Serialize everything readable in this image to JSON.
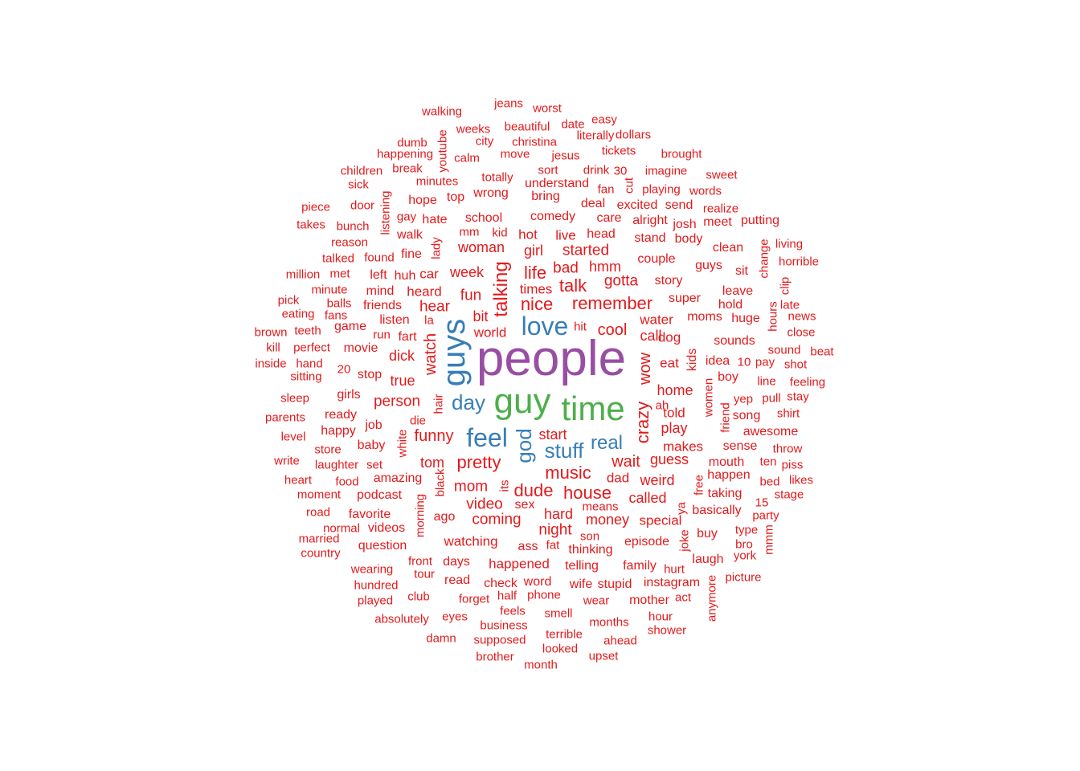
{
  "colors": {
    "small": "#e31a1c",
    "medium": "#377eb8",
    "large_green": "#4daf4a",
    "large_purple": "#984ea3"
  },
  "words": [
    {
      "text": "people",
      "color": "#984ea3"
    },
    {
      "text": "guy",
      "color": "#4daf4a"
    },
    {
      "text": "time",
      "color": "#4daf4a"
    },
    {
      "text": "guys",
      "color": "#377eb8"
    },
    {
      "text": "love",
      "color": "#377eb8"
    },
    {
      "text": "feel",
      "color": "#377eb8"
    },
    {
      "text": "day",
      "color": "#377eb8"
    },
    {
      "text": "stuff",
      "color": "#377eb8"
    },
    {
      "text": "real",
      "color": "#377eb8"
    },
    {
      "text": "god",
      "color": "#377eb8"
    },
    {
      "text": "remember",
      "color": "#e31a1c"
    },
    {
      "text": "talking",
      "color": "#e31a1c"
    },
    {
      "text": "nice",
      "color": "#e31a1c"
    },
    {
      "text": "music",
      "color": "#e31a1c"
    },
    {
      "text": "house",
      "color": "#e31a1c"
    },
    {
      "text": "pretty",
      "color": "#e31a1c"
    },
    {
      "text": "funny",
      "color": "#e31a1c"
    },
    {
      "text": "crazy",
      "color": "#e31a1c"
    },
    {
      "text": "talk",
      "color": "#e31a1c"
    },
    {
      "text": "life",
      "color": "#e31a1c"
    },
    {
      "text": "dude",
      "color": "#e31a1c"
    },
    {
      "text": "wait",
      "color": "#e31a1c"
    },
    {
      "text": "cool",
      "color": "#e31a1c"
    },
    {
      "text": "gotta",
      "color": "#e31a1c"
    },
    {
      "text": "watch",
      "color": "#e31a1c"
    },
    {
      "text": "wow",
      "color": "#e31a1c"
    },
    {
      "text": "person",
      "color": "#e31a1c"
    },
    {
      "text": "hear",
      "color": "#e31a1c"
    },
    {
      "text": "fun",
      "color": "#e31a1c"
    },
    {
      "text": "mom",
      "color": "#e31a1c"
    },
    {
      "text": "video",
      "color": "#e31a1c"
    },
    {
      "text": "coming",
      "color": "#e31a1c"
    },
    {
      "text": "money",
      "color": "#e31a1c"
    },
    {
      "text": "night",
      "color": "#e31a1c"
    },
    {
      "text": "started",
      "color": "#e31a1c"
    },
    {
      "text": "bad",
      "color": "#e31a1c"
    },
    {
      "text": "hmm",
      "color": "#e31a1c"
    },
    {
      "text": "week",
      "color": "#e31a1c"
    },
    {
      "text": "woman",
      "color": "#e31a1c"
    },
    {
      "text": "girl",
      "color": "#e31a1c"
    },
    {
      "text": "start",
      "color": "#e31a1c"
    },
    {
      "text": "guess",
      "color": "#e31a1c"
    },
    {
      "text": "home",
      "color": "#e31a1c"
    },
    {
      "text": "weird",
      "color": "#e31a1c"
    },
    {
      "text": "called",
      "color": "#e31a1c"
    },
    {
      "text": "hard",
      "color": "#e31a1c"
    },
    {
      "text": "tom",
      "color": "#e31a1c"
    },
    {
      "text": "play",
      "color": "#e31a1c"
    },
    {
      "text": "call",
      "color": "#e31a1c"
    },
    {
      "text": "dog",
      "color": "#e31a1c"
    },
    {
      "text": "water",
      "color": "#e31a1c"
    },
    {
      "text": "eat",
      "color": "#e31a1c"
    },
    {
      "text": "told",
      "color": "#e31a1c"
    },
    {
      "text": "makes",
      "color": "#e31a1c"
    },
    {
      "text": "dad",
      "color": "#e31a1c"
    },
    {
      "text": "special",
      "color": "#e31a1c"
    },
    {
      "text": "watching",
      "color": "#e31a1c"
    },
    {
      "text": "happened",
      "color": "#e31a1c"
    },
    {
      "text": "true",
      "color": "#e31a1c"
    },
    {
      "text": "dick",
      "color": "#e31a1c"
    },
    {
      "text": "world",
      "color": "#e31a1c"
    },
    {
      "text": "bit",
      "color": "#e31a1c"
    },
    {
      "text": "times",
      "color": "#e31a1c"
    },
    {
      "text": "hot",
      "color": "#e31a1c"
    },
    {
      "text": "live",
      "color": "#e31a1c"
    },
    {
      "text": "head",
      "color": "#e31a1c"
    },
    {
      "text": "couple",
      "color": "#e31a1c"
    },
    {
      "text": "story",
      "color": "#e31a1c"
    },
    {
      "text": "super",
      "color": "#e31a1c"
    },
    {
      "text": "moms",
      "color": "#e31a1c"
    },
    {
      "text": "kids",
      "color": "#e31a1c"
    },
    {
      "text": "school",
      "color": "#e31a1c"
    },
    {
      "text": "comedy",
      "color": "#e31a1c"
    },
    {
      "text": "heard",
      "color": "#e31a1c"
    },
    {
      "text": "amazing",
      "color": "#e31a1c"
    },
    {
      "text": "podcast",
      "color": "#e31a1c"
    },
    {
      "text": "sex",
      "color": "#e31a1c"
    },
    {
      "text": "episode",
      "color": "#e31a1c"
    },
    {
      "text": "thinking",
      "color": "#e31a1c"
    },
    {
      "text": "ass",
      "color": "#e31a1c"
    },
    {
      "text": "days",
      "color": "#e31a1c"
    },
    {
      "text": "ago",
      "color": "#e31a1c"
    },
    {
      "text": "family",
      "color": "#e31a1c"
    },
    {
      "text": "telling",
      "color": "#e31a1c"
    },
    {
      "text": "fart",
      "color": "#e31a1c"
    },
    {
      "text": "listen",
      "color": "#e31a1c"
    },
    {
      "text": "car",
      "color": "#e31a1c"
    },
    {
      "text": "job",
      "color": "#e31a1c"
    },
    {
      "text": "baby",
      "color": "#e31a1c"
    },
    {
      "text": "movie",
      "color": "#e31a1c"
    },
    {
      "text": "stop",
      "color": "#e31a1c"
    },
    {
      "text": "sounds",
      "color": "#e31a1c"
    },
    {
      "text": "idea",
      "color": "#e31a1c"
    },
    {
      "text": "boy",
      "color": "#e31a1c"
    },
    {
      "text": "song",
      "color": "#e31a1c"
    },
    {
      "text": "awesome",
      "color": "#e31a1c"
    },
    {
      "text": "sense",
      "color": "#e31a1c"
    },
    {
      "text": "mouth",
      "color": "#e31a1c"
    },
    {
      "text": "happen",
      "color": "#e31a1c"
    },
    {
      "text": "taking",
      "color": "#e31a1c"
    },
    {
      "text": "basically",
      "color": "#e31a1c"
    },
    {
      "text": "buy",
      "color": "#e31a1c"
    },
    {
      "text": "laugh",
      "color": "#e31a1c"
    },
    {
      "text": "instagram",
      "color": "#e31a1c"
    },
    {
      "text": "mother",
      "color": "#e31a1c"
    },
    {
      "text": "stupid",
      "color": "#e31a1c"
    },
    {
      "text": "wife",
      "color": "#e31a1c"
    },
    {
      "text": "check",
      "color": "#e31a1c"
    },
    {
      "text": "word",
      "color": "#e31a1c"
    },
    {
      "text": "read",
      "color": "#e31a1c"
    },
    {
      "text": "favorite",
      "color": "#e31a1c"
    },
    {
      "text": "videos",
      "color": "#e31a1c"
    },
    {
      "text": "question",
      "color": "#e31a1c"
    },
    {
      "text": "happy",
      "color": "#e31a1c"
    },
    {
      "text": "ready",
      "color": "#e31a1c"
    },
    {
      "text": "girls",
      "color": "#e31a1c"
    },
    {
      "text": "game",
      "color": "#e31a1c"
    },
    {
      "text": "friends",
      "color": "#e31a1c"
    },
    {
      "text": "mind",
      "color": "#e31a1c"
    },
    {
      "text": "left",
      "color": "#e31a1c"
    },
    {
      "text": "huh",
      "color": "#e31a1c"
    },
    {
      "text": "fine",
      "color": "#e31a1c"
    },
    {
      "text": "walk",
      "color": "#e31a1c"
    },
    {
      "text": "hate",
      "color": "#e31a1c"
    },
    {
      "text": "hope",
      "color": "#e31a1c"
    },
    {
      "text": "top",
      "color": "#e31a1c"
    },
    {
      "text": "wrong",
      "color": "#e31a1c"
    },
    {
      "text": "understand",
      "color": "#e31a1c"
    },
    {
      "text": "bring",
      "color": "#e31a1c"
    },
    {
      "text": "deal",
      "color": "#e31a1c"
    },
    {
      "text": "excited",
      "color": "#e31a1c"
    },
    {
      "text": "send",
      "color": "#e31a1c"
    },
    {
      "text": "care",
      "color": "#e31a1c"
    },
    {
      "text": "alright",
      "color": "#e31a1c"
    },
    {
      "text": "josh",
      "color": "#e31a1c"
    },
    {
      "text": "stand",
      "color": "#e31a1c"
    },
    {
      "text": "body",
      "color": "#e31a1c"
    },
    {
      "text": "meet",
      "color": "#e31a1c"
    },
    {
      "text": "putting",
      "color": "#e31a1c"
    },
    {
      "text": "guys",
      "color": "#e31a1c"
    },
    {
      "text": "clean",
      "color": "#e31a1c"
    },
    {
      "text": "sit",
      "color": "#e31a1c"
    },
    {
      "text": "leave",
      "color": "#e31a1c"
    },
    {
      "text": "hold",
      "color": "#e31a1c"
    },
    {
      "text": "huge",
      "color": "#e31a1c"
    },
    {
      "text": "walking",
      "color": "#e31a1c"
    },
    {
      "text": "jeans",
      "color": "#e31a1c"
    },
    {
      "text": "worst",
      "color": "#e31a1c"
    },
    {
      "text": "easy",
      "color": "#e31a1c"
    },
    {
      "text": "date",
      "color": "#e31a1c"
    },
    {
      "text": "weeks",
      "color": "#e31a1c"
    },
    {
      "text": "beautiful",
      "color": "#e31a1c"
    },
    {
      "text": "literally",
      "color": "#e31a1c"
    },
    {
      "text": "dollars",
      "color": "#e31a1c"
    },
    {
      "text": "dumb",
      "color": "#e31a1c"
    },
    {
      "text": "city",
      "color": "#e31a1c"
    },
    {
      "text": "christina",
      "color": "#e31a1c"
    },
    {
      "text": "youtube",
      "color": "#e31a1c"
    },
    {
      "text": "calm",
      "color": "#e31a1c"
    },
    {
      "text": "move",
      "color": "#e31a1c"
    },
    {
      "text": "jesus",
      "color": "#e31a1c"
    },
    {
      "text": "tickets",
      "color": "#e31a1c"
    },
    {
      "text": "brought",
      "color": "#e31a1c"
    },
    {
      "text": "happening",
      "color": "#e31a1c"
    },
    {
      "text": "children",
      "color": "#e31a1c"
    },
    {
      "text": "break",
      "color": "#e31a1c"
    },
    {
      "text": "sort",
      "color": "#e31a1c"
    },
    {
      "text": "drink",
      "color": "#e31a1c"
    },
    {
      "text": "30",
      "color": "#e31a1c"
    },
    {
      "text": "imagine",
      "color": "#e31a1c"
    },
    {
      "text": "sweet",
      "color": "#e31a1c"
    },
    {
      "text": "sick",
      "color": "#e31a1c"
    },
    {
      "text": "minutes",
      "color": "#e31a1c"
    },
    {
      "text": "totally",
      "color": "#e31a1c"
    },
    {
      "text": "fan",
      "color": "#e31a1c"
    },
    {
      "text": "cut",
      "color": "#e31a1c"
    },
    {
      "text": "playing",
      "color": "#e31a1c"
    },
    {
      "text": "words",
      "color": "#e31a1c"
    },
    {
      "text": "piece",
      "color": "#e31a1c"
    },
    {
      "text": "door",
      "color": "#e31a1c"
    },
    {
      "text": "listening",
      "color": "#e31a1c"
    },
    {
      "text": "gay",
      "color": "#e31a1c"
    },
    {
      "text": "realize",
      "color": "#e31a1c"
    },
    {
      "text": "takes",
      "color": "#e31a1c"
    },
    {
      "text": "bunch",
      "color": "#e31a1c"
    },
    {
      "text": "mm",
      "color": "#e31a1c"
    },
    {
      "text": "kid",
      "color": "#e31a1c"
    },
    {
      "text": "lady",
      "color": "#e31a1c"
    },
    {
      "text": "reason",
      "color": "#e31a1c"
    },
    {
      "text": "living",
      "color": "#e31a1c"
    },
    {
      "text": "change",
      "color": "#e31a1c"
    },
    {
      "text": "talked",
      "color": "#e31a1c"
    },
    {
      "text": "found",
      "color": "#e31a1c"
    },
    {
      "text": "horrible",
      "color": "#e31a1c"
    },
    {
      "text": "million",
      "color": "#e31a1c"
    },
    {
      "text": "met",
      "color": "#e31a1c"
    },
    {
      "text": "clip",
      "color": "#e31a1c"
    },
    {
      "text": "minute",
      "color": "#e31a1c"
    },
    {
      "text": "pick",
      "color": "#e31a1c"
    },
    {
      "text": "balls",
      "color": "#e31a1c"
    },
    {
      "text": "hours",
      "color": "#e31a1c"
    },
    {
      "text": "late",
      "color": "#e31a1c"
    },
    {
      "text": "eating",
      "color": "#e31a1c"
    },
    {
      "text": "fans",
      "color": "#e31a1c"
    },
    {
      "text": "la",
      "color": "#e31a1c"
    },
    {
      "text": "news",
      "color": "#e31a1c"
    },
    {
      "text": "brown",
      "color": "#e31a1c"
    },
    {
      "text": "teeth",
      "color": "#e31a1c"
    },
    {
      "text": "run",
      "color": "#e31a1c"
    },
    {
      "text": "hit",
      "color": "#e31a1c"
    },
    {
      "text": "close",
      "color": "#e31a1c"
    },
    {
      "text": "kill",
      "color": "#e31a1c"
    },
    {
      "text": "perfect",
      "color": "#e31a1c"
    },
    {
      "text": "sound",
      "color": "#e31a1c"
    },
    {
      "text": "beat",
      "color": "#e31a1c"
    },
    {
      "text": "inside",
      "color": "#e31a1c"
    },
    {
      "text": "hand",
      "color": "#e31a1c"
    },
    {
      "text": "10",
      "color": "#e31a1c"
    },
    {
      "text": "pay",
      "color": "#e31a1c"
    },
    {
      "text": "shot",
      "color": "#e31a1c"
    },
    {
      "text": "sitting",
      "color": "#e31a1c"
    },
    {
      "text": "20",
      "color": "#e31a1c"
    },
    {
      "text": "line",
      "color": "#e31a1c"
    },
    {
      "text": "feeling",
      "color": "#e31a1c"
    },
    {
      "text": "sleep",
      "color": "#e31a1c"
    },
    {
      "text": "hair",
      "color": "#e31a1c"
    },
    {
      "text": "ah",
      "color": "#e31a1c"
    },
    {
      "text": "yep",
      "color": "#e31a1c"
    },
    {
      "text": "pull",
      "color": "#e31a1c"
    },
    {
      "text": "stay",
      "color": "#e31a1c"
    },
    {
      "text": "parents",
      "color": "#e31a1c"
    },
    {
      "text": "die",
      "color": "#e31a1c"
    },
    {
      "text": "women",
      "color": "#e31a1c"
    },
    {
      "text": "friend",
      "color": "#e31a1c"
    },
    {
      "text": "shirt",
      "color": "#e31a1c"
    },
    {
      "text": "level",
      "color": "#e31a1c"
    },
    {
      "text": "white",
      "color": "#e31a1c"
    },
    {
      "text": "store",
      "color": "#e31a1c"
    },
    {
      "text": "throw",
      "color": "#e31a1c"
    },
    {
      "text": "write",
      "color": "#e31a1c"
    },
    {
      "text": "laughter",
      "color": "#e31a1c"
    },
    {
      "text": "set",
      "color": "#e31a1c"
    },
    {
      "text": "ten",
      "color": "#e31a1c"
    },
    {
      "text": "piss",
      "color": "#e31a1c"
    },
    {
      "text": "heart",
      "color": "#e31a1c"
    },
    {
      "text": "food",
      "color": "#e31a1c"
    },
    {
      "text": "black",
      "color": "#e31a1c"
    },
    {
      "text": "its",
      "color": "#e31a1c"
    },
    {
      "text": "free",
      "color": "#e31a1c"
    },
    {
      "text": "bed",
      "color": "#e31a1c"
    },
    {
      "text": "likes",
      "color": "#e31a1c"
    },
    {
      "text": "moment",
      "color": "#e31a1c"
    },
    {
      "text": "stage",
      "color": "#e31a1c"
    },
    {
      "text": "road",
      "color": "#e31a1c"
    },
    {
      "text": "morning",
      "color": "#e31a1c"
    },
    {
      "text": "means",
      "color": "#e31a1c"
    },
    {
      "text": "ya",
      "color": "#e31a1c"
    },
    {
      "text": "15",
      "color": "#e31a1c"
    },
    {
      "text": "party",
      "color": "#e31a1c"
    },
    {
      "text": "normal",
      "color": "#e31a1c"
    },
    {
      "text": "type",
      "color": "#e31a1c"
    },
    {
      "text": "married",
      "color": "#e31a1c"
    },
    {
      "text": "son",
      "color": "#e31a1c"
    },
    {
      "text": "fat",
      "color": "#e31a1c"
    },
    {
      "text": "joke",
      "color": "#e31a1c"
    },
    {
      "text": "bro",
      "color": "#e31a1c"
    },
    {
      "text": "mmm",
      "color": "#e31a1c"
    },
    {
      "text": "country",
      "color": "#e31a1c"
    },
    {
      "text": "york",
      "color": "#e31a1c"
    },
    {
      "text": "front",
      "color": "#e31a1c"
    },
    {
      "text": "wearing",
      "color": "#e31a1c"
    },
    {
      "text": "tour",
      "color": "#e31a1c"
    },
    {
      "text": "hurt",
      "color": "#e31a1c"
    },
    {
      "text": "picture",
      "color": "#e31a1c"
    },
    {
      "text": "hundred",
      "color": "#e31a1c"
    },
    {
      "text": "anymore",
      "color": "#e31a1c"
    },
    {
      "text": "played",
      "color": "#e31a1c"
    },
    {
      "text": "club",
      "color": "#e31a1c"
    },
    {
      "text": "forget",
      "color": "#e31a1c"
    },
    {
      "text": "half",
      "color": "#e31a1c"
    },
    {
      "text": "phone",
      "color": "#e31a1c"
    },
    {
      "text": "wear",
      "color": "#e31a1c"
    },
    {
      "text": "act",
      "color": "#e31a1c"
    },
    {
      "text": "feels",
      "color": "#e31a1c"
    },
    {
      "text": "smell",
      "color": "#e31a1c"
    },
    {
      "text": "absolutely",
      "color": "#e31a1c"
    },
    {
      "text": "eyes",
      "color": "#e31a1c"
    },
    {
      "text": "hour",
      "color": "#e31a1c"
    },
    {
      "text": "business",
      "color": "#e31a1c"
    },
    {
      "text": "months",
      "color": "#e31a1c"
    },
    {
      "text": "shower",
      "color": "#e31a1c"
    },
    {
      "text": "terrible",
      "color": "#e31a1c"
    },
    {
      "text": "damn",
      "color": "#e31a1c"
    },
    {
      "text": "supposed",
      "color": "#e31a1c"
    },
    {
      "text": "ahead",
      "color": "#e31a1c"
    },
    {
      "text": "looked",
      "color": "#e31a1c"
    },
    {
      "text": "brother",
      "color": "#e31a1c"
    },
    {
      "text": "upset",
      "color": "#e31a1c"
    },
    {
      "text": "month",
      "color": "#e31a1c"
    }
  ]
}
